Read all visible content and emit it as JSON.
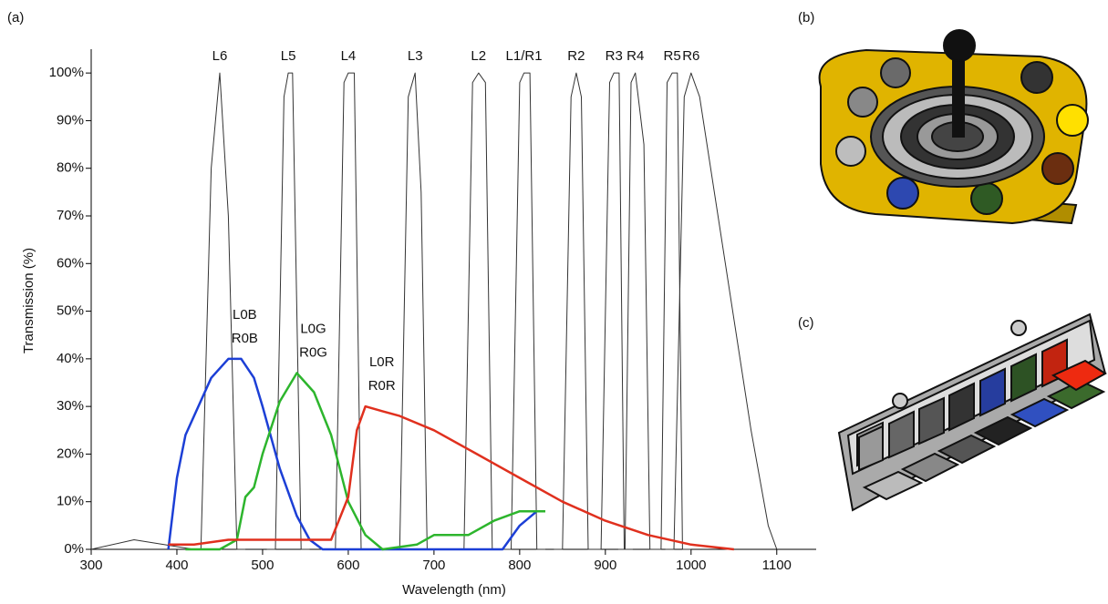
{
  "panels": {
    "a": "(a)",
    "b": "(b)",
    "c": "(c)"
  },
  "chart_data": {
    "type": "line",
    "x_label": "Wavelength (nm)",
    "y_label": "Transmission (%)",
    "xlim": [
      300,
      1146
    ],
    "ylim": [
      0,
      105
    ],
    "xticks": [
      300,
      400,
      500,
      600,
      700,
      800,
      900,
      1000,
      1100
    ],
    "yticks": [
      {
        "value": 0,
        "label": "0%"
      },
      {
        "value": 10,
        "label": "10%"
      },
      {
        "value": 20,
        "label": "20%"
      },
      {
        "value": 30,
        "label": "30%"
      },
      {
        "value": 40,
        "label": "40%"
      },
      {
        "value": 50,
        "label": "50%"
      },
      {
        "value": 60,
        "label": "60%"
      },
      {
        "value": 70,
        "label": "70%"
      },
      {
        "value": 80,
        "label": "80%"
      },
      {
        "value": 90,
        "label": "90%"
      },
      {
        "value": 100,
        "label": "100%"
      }
    ],
    "series": [
      {
        "name": "L6",
        "color": "#333333",
        "x": [
          300,
          350,
          420,
          428,
          440,
          450,
          460,
          470,
          480
        ],
        "values": [
          0,
          2,
          0,
          0,
          80,
          100,
          70,
          0,
          0
        ]
      },
      {
        "name": "L5",
        "color": "#333333",
        "x": [
          505,
          515,
          525,
          530,
          535,
          545,
          555
        ],
        "values": [
          0,
          0,
          95,
          100,
          100,
          0,
          0
        ]
      },
      {
        "name": "L4",
        "color": "#333333",
        "x": [
          575,
          585,
          595,
          600,
          607,
          615,
          625
        ],
        "values": [
          0,
          0,
          98,
          100,
          100,
          0,
          0
        ]
      },
      {
        "name": "L3",
        "color": "#333333",
        "x": [
          650,
          660,
          670,
          678,
          685,
          692,
          702
        ],
        "values": [
          0,
          0,
          95,
          100,
          75,
          0,
          0
        ]
      },
      {
        "name": "L2",
        "color": "#333333",
        "x": [
          725,
          735,
          745,
          752,
          760,
          768,
          778
        ],
        "values": [
          0,
          0,
          98,
          100,
          98,
          0,
          0
        ]
      },
      {
        "name": "L1/R1",
        "color": "#333333",
        "x": [
          780,
          790,
          800,
          805,
          812,
          820,
          830
        ],
        "values": [
          0,
          0,
          98,
          100,
          100,
          0,
          0
        ]
      },
      {
        "name": "R2",
        "color": "#333333",
        "x": [
          840,
          850,
          860,
          866,
          872,
          880,
          890
        ],
        "values": [
          0,
          0,
          95,
          100,
          95,
          0,
          0
        ]
      },
      {
        "name": "R3",
        "color": "#333333",
        "x": [
          885,
          895,
          905,
          910,
          916,
          922,
          932
        ],
        "values": [
          0,
          0,
          98,
          100,
          100,
          0,
          0
        ]
      },
      {
        "name": "R4",
        "color": "#333333",
        "x": [
          915,
          923,
          930,
          935,
          945,
          952,
          962
        ],
        "values": [
          0,
          0,
          98,
          100,
          85,
          0,
          0
        ]
      },
      {
        "name": "R5",
        "color": "#333333",
        "x": [
          955,
          965,
          972,
          978,
          984,
          990,
          1000
        ],
        "values": [
          0,
          0,
          98,
          100,
          100,
          0,
          0
        ]
      },
      {
        "name": "R6",
        "color": "#333333",
        "x": [
          970,
          980,
          992,
          1000,
          1010,
          1040,
          1070,
          1090,
          1100
        ],
        "values": [
          0,
          0,
          95,
          100,
          95,
          60,
          25,
          5,
          0
        ]
      },
      {
        "name": "L0B R0B",
        "label_lines": [
          "L0B",
          "R0B"
        ],
        "color": "#1c3fd6",
        "x": [
          390,
          400,
          410,
          420,
          440,
          460,
          475,
          490,
          500,
          520,
          540,
          555,
          570,
          780,
          800,
          820,
          830
        ],
        "values": [
          0,
          15,
          24,
          28,
          36,
          40,
          40,
          36,
          30,
          17,
          7,
          2,
          0,
          0,
          5,
          8,
          8
        ]
      },
      {
        "name": "L0G R0G",
        "label_lines": [
          "L0G",
          "R0G"
        ],
        "color": "#2db52d",
        "x": [
          410,
          450,
          470,
          480,
          490,
          500,
          520,
          540,
          550,
          560,
          580,
          600,
          620,
          640,
          680,
          700,
          740,
          770,
          800,
          830
        ],
        "values": [
          0,
          0,
          2,
          11,
          13,
          20,
          31,
          37,
          35,
          33,
          24,
          10,
          3,
          0,
          1,
          3,
          3,
          6,
          8,
          8
        ]
      },
      {
        "name": "L0R R0R",
        "label_lines": [
          "L0R",
          "R0R"
        ],
        "color": "#e0301e",
        "x": [
          390,
          420,
          460,
          580,
          600,
          610,
          620,
          640,
          660,
          700,
          750,
          800,
          850,
          900,
          950,
          1000,
          1050
        ],
        "values": [
          1,
          1,
          2,
          2,
          11,
          25,
          30,
          29,
          28,
          25,
          20,
          15,
          10,
          6,
          3,
          1,
          0
        ]
      }
    ]
  }
}
